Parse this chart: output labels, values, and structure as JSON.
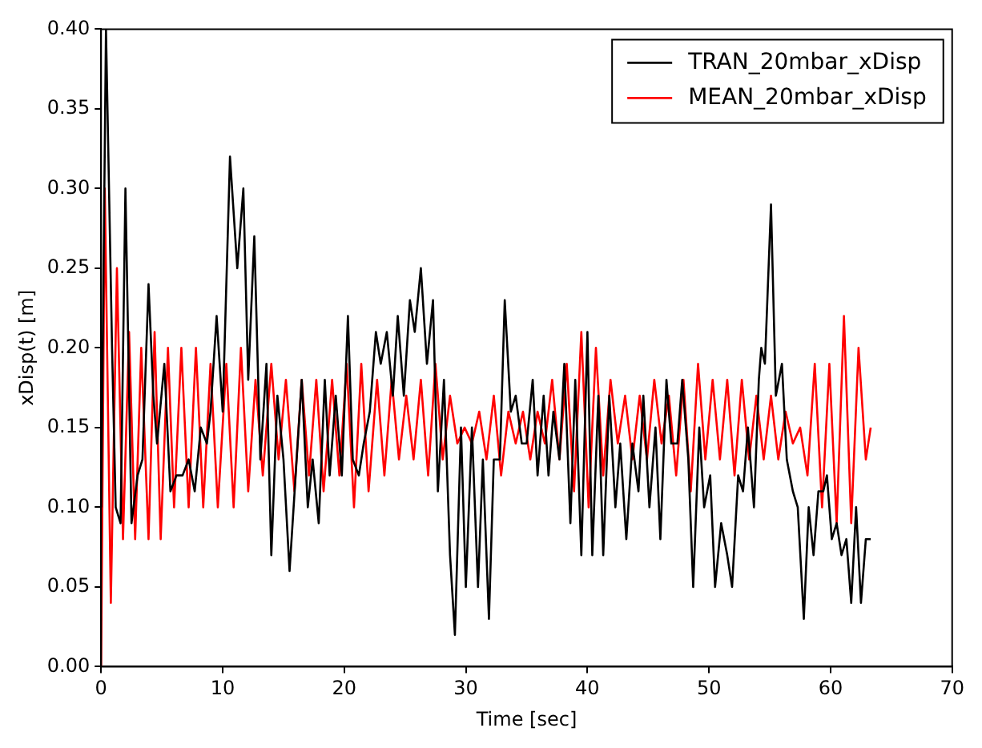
{
  "chart_data": {
    "type": "line",
    "xlabel": "Time [sec]",
    "ylabel": "xDisp(t) [m]",
    "xlim": [
      0,
      70
    ],
    "xticks": [
      0,
      10,
      20,
      30,
      40,
      50,
      60,
      70
    ],
    "ylim": [
      0,
      0.4
    ],
    "yticks": [
      {
        "value": 0,
        "label": "0.00"
      },
      {
        "value": 0.05,
        "label": "0.05"
      },
      {
        "value": 0.1,
        "label": "0.10"
      },
      {
        "value": 0.15,
        "label": "0.15"
      },
      {
        "value": 0.2,
        "label": "0.20"
      },
      {
        "value": 0.25,
        "label": "0.25"
      },
      {
        "value": 0.3,
        "label": "0.30"
      },
      {
        "value": 0.35,
        "label": "0.35"
      },
      {
        "value": 0.4,
        "label": "0.40"
      }
    ],
    "grid": false,
    "legend": "top right",
    "marker": "none",
    "line_style": "solid",
    "series": [
      {
        "name": "TRAN_20mbar_xDisp",
        "color": "#000000",
        "x": [
          0,
          0.4,
          0.9,
          1.2,
          1.6,
          2.0,
          2.5,
          3.0,
          3.4,
          3.9,
          4.3,
          4.6,
          5.2,
          5.7,
          6.2,
          6.7,
          7.2,
          7.7,
          8.2,
          8.7,
          9.0,
          9.5,
          10.0,
          10.6,
          11.2,
          11.7,
          12.1,
          12.6,
          13.1,
          13.6,
          14.0,
          14.5,
          15.0,
          15.5,
          16.0,
          16.5,
          17.0,
          17.4,
          17.9,
          18.4,
          18.8,
          19.3,
          19.8,
          20.3,
          20.7,
          21.2,
          21.6,
          22.1,
          22.6,
          23.0,
          23.5,
          24.0,
          24.4,
          24.9,
          25.4,
          25.8,
          26.3,
          26.8,
          27.3,
          27.7,
          28.2,
          28.7,
          29.1,
          29.6,
          30.0,
          30.5,
          31.0,
          31.4,
          31.9,
          32.3,
          32.8,
          33.2,
          33.7,
          34.1,
          34.6,
          35.0,
          35.5,
          35.9,
          36.4,
          36.8,
          37.2,
          37.7,
          38.1,
          38.6,
          39.0,
          39.5,
          40.0,
          40.4,
          40.9,
          41.3,
          41.8,
          42.3,
          42.7,
          43.2,
          43.7,
          44.2,
          44.6,
          45.1,
          45.6,
          46.0,
          46.5,
          46.9,
          47.4,
          47.8,
          48.3,
          48.7,
          49.2,
          49.6,
          50.1,
          50.5,
          51.0,
          51.5,
          51.9,
          52.4,
          52.8,
          53.2,
          53.7,
          54.1,
          54.3,
          54.6,
          55.1,
          55.5,
          56.0,
          56.4,
          56.9,
          57.3,
          57.8,
          58.2,
          58.6,
          59.0,
          59.4,
          59.7,
          60.1,
          60.5,
          60.9,
          61.3,
          61.7,
          62.1,
          62.5,
          62.9,
          63.3
        ],
        "values": [
          0.1,
          0.4,
          0.2,
          0.1,
          0.09,
          0.3,
          0.09,
          0.12,
          0.13,
          0.24,
          0.17,
          0.14,
          0.19,
          0.11,
          0.12,
          0.12,
          0.13,
          0.11,
          0.15,
          0.14,
          0.16,
          0.22,
          0.16,
          0.32,
          0.25,
          0.3,
          0.18,
          0.27,
          0.13,
          0.19,
          0.07,
          0.17,
          0.13,
          0.06,
          0.12,
          0.18,
          0.1,
          0.13,
          0.09,
          0.18,
          0.12,
          0.17,
          0.12,
          0.22,
          0.13,
          0.12,
          0.14,
          0.16,
          0.21,
          0.19,
          0.21,
          0.17,
          0.22,
          0.17,
          0.23,
          0.21,
          0.25,
          0.19,
          0.23,
          0.11,
          0.18,
          0.07,
          0.02,
          0.15,
          0.05,
          0.15,
          0.05,
          0.13,
          0.03,
          0.13,
          0.13,
          0.23,
          0.16,
          0.17,
          0.14,
          0.14,
          0.18,
          0.12,
          0.17,
          0.12,
          0.16,
          0.13,
          0.19,
          0.09,
          0.18,
          0.07,
          0.21,
          0.07,
          0.17,
          0.07,
          0.17,
          0.1,
          0.14,
          0.08,
          0.14,
          0.11,
          0.17,
          0.1,
          0.15,
          0.08,
          0.18,
          0.14,
          0.14,
          0.18,
          0.13,
          0.05,
          0.15,
          0.1,
          0.12,
          0.05,
          0.09,
          0.07,
          0.05,
          0.12,
          0.11,
          0.15,
          0.1,
          0.18,
          0.2,
          0.19,
          0.29,
          0.17,
          0.19,
          0.13,
          0.11,
          0.1,
          0.03,
          0.1,
          0.07,
          0.11,
          0.11,
          0.12,
          0.08,
          0.09,
          0.07,
          0.08,
          0.04,
          0.1,
          0.04,
          0.08,
          0.08
        ]
      },
      {
        "name": "MEAN_20mbar_xDisp",
        "color": "#ff0000",
        "x": [
          0,
          0.3,
          0.8,
          1.3,
          1.8,
          2.3,
          2.8,
          3.3,
          3.9,
          4.4,
          4.9,
          5.5,
          6.0,
          6.6,
          7.2,
          7.8,
          8.4,
          9.0,
          9.6,
          10.3,
          10.9,
          11.5,
          12.1,
          12.7,
          13.3,
          14.0,
          14.6,
          15.2,
          15.9,
          16.5,
          17.1,
          17.7,
          18.3,
          19.0,
          19.6,
          20.2,
          20.8,
          21.4,
          22.0,
          22.7,
          23.3,
          23.9,
          24.5,
          25.1,
          25.7,
          26.3,
          26.9,
          27.5,
          28.1,
          28.7,
          29.3,
          29.9,
          30.5,
          31.1,
          31.7,
          32.3,
          32.9,
          33.5,
          34.1,
          34.7,
          35.3,
          35.9,
          36.5,
          37.1,
          37.7,
          38.3,
          38.9,
          39.5,
          40.1,
          40.7,
          41.3,
          41.9,
          42.5,
          43.1,
          43.7,
          44.3,
          44.9,
          45.5,
          46.1,
          46.7,
          47.3,
          47.9,
          48.5,
          49.1,
          49.7,
          50.3,
          50.9,
          51.5,
          52.1,
          52.7,
          53.3,
          53.9,
          54.5,
          55.1,
          55.7,
          56.3,
          56.9,
          57.5,
          58.1,
          58.7,
          59.3,
          59.9,
          60.5,
          61.1,
          61.7,
          62.3,
          62.9,
          63.3
        ],
        "values": [
          0,
          0.3,
          0.04,
          0.25,
          0.08,
          0.21,
          0.08,
          0.2,
          0.08,
          0.21,
          0.08,
          0.2,
          0.1,
          0.2,
          0.1,
          0.2,
          0.1,
          0.19,
          0.1,
          0.19,
          0.1,
          0.2,
          0.11,
          0.18,
          0.12,
          0.19,
          0.13,
          0.18,
          0.11,
          0.18,
          0.12,
          0.18,
          0.11,
          0.18,
          0.12,
          0.19,
          0.1,
          0.19,
          0.11,
          0.18,
          0.12,
          0.18,
          0.13,
          0.17,
          0.13,
          0.18,
          0.12,
          0.19,
          0.13,
          0.17,
          0.14,
          0.15,
          0.14,
          0.16,
          0.13,
          0.17,
          0.12,
          0.16,
          0.14,
          0.16,
          0.13,
          0.16,
          0.14,
          0.18,
          0.13,
          0.19,
          0.11,
          0.21,
          0.1,
          0.2,
          0.12,
          0.18,
          0.14,
          0.17,
          0.13,
          0.17,
          0.13,
          0.18,
          0.14,
          0.17,
          0.12,
          0.18,
          0.11,
          0.19,
          0.13,
          0.18,
          0.13,
          0.18,
          0.12,
          0.18,
          0.13,
          0.17,
          0.13,
          0.17,
          0.13,
          0.16,
          0.14,
          0.15,
          0.12,
          0.19,
          0.1,
          0.19,
          0.09,
          0.22,
          0.09,
          0.2,
          0.13,
          0.15
        ]
      }
    ]
  }
}
